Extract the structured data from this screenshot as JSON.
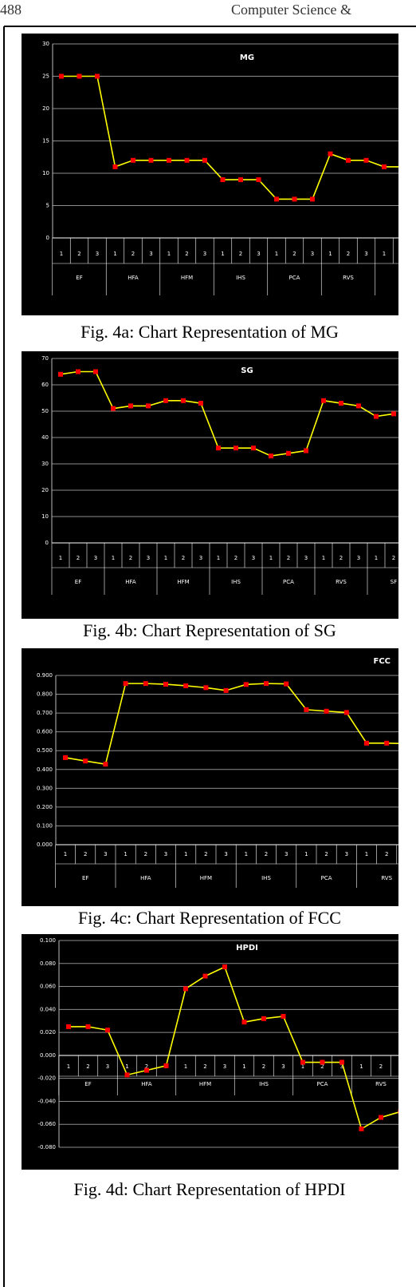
{
  "header": {
    "page": "488",
    "running_title": "Computer Science &"
  },
  "chart_data": [
    {
      "type": "line",
      "title": "MG",
      "caption": "Fig. 4a: Chart Representation of MG",
      "categories": [
        "1",
        "2",
        "3",
        "1",
        "2",
        "3",
        "1",
        "2",
        "3",
        "1",
        "2",
        "3",
        "1",
        "2",
        "3",
        "1",
        "2",
        "3",
        "1",
        null
      ],
      "groups": [
        "EF",
        "HFA",
        "HFM",
        "IHS",
        "PCA",
        "RVS",
        null
      ],
      "values": [
        25,
        25,
        25,
        11,
        12,
        12,
        12,
        12,
        12,
        9,
        9,
        9,
        6,
        6,
        6,
        13,
        12,
        12,
        11,
        11
      ],
      "color": "#ffff00",
      "marker_color": "#ff0000",
      "ylim": [
        0,
        30
      ],
      "yticks": [
        0,
        5,
        10,
        15,
        20,
        25,
        30
      ],
      "grid": true
    },
    {
      "type": "line",
      "title": "SG",
      "caption": "Fig. 4b: Chart Representation of SG",
      "categories": [
        "1",
        "2",
        "3",
        "1",
        "2",
        "3",
        "1",
        "2",
        "3",
        "1",
        "2",
        "3",
        "1",
        "2",
        "3",
        "1",
        "2",
        "3",
        "1",
        "2"
      ],
      "groups": [
        "EF",
        "HFA",
        "HFM",
        "IHS",
        "PCA",
        "RVS",
        "SF"
      ],
      "values": [
        64,
        65,
        65,
        51,
        52,
        52,
        54,
        54,
        53,
        36,
        36,
        36,
        33,
        34,
        35,
        54,
        53,
        52,
        48,
        49
      ],
      "color": "#ffff00",
      "marker_color": "#ff0000",
      "ylim": [
        0,
        70
      ],
      "yticks": [
        0,
        10,
        20,
        30,
        40,
        50,
        60,
        70
      ],
      "grid": true
    },
    {
      "type": "line",
      "title": "FCC",
      "caption": "Fig. 4c: Chart Representation of FCC",
      "categories": [
        "1",
        "2",
        "3",
        "1",
        "2",
        "3",
        "1",
        "2",
        "3",
        "1",
        "2",
        "3",
        "1",
        "2",
        "3",
        "1",
        "2",
        null
      ],
      "groups": [
        "EF",
        "HFA",
        "HFM",
        "IHS",
        "PCA",
        "RVS"
      ],
      "values": [
        0.463,
        0.445,
        0.428,
        0.857,
        0.857,
        0.853,
        0.845,
        0.835,
        0.82,
        0.852,
        0.857,
        0.855,
        0.718,
        0.71,
        0.703,
        0.54,
        0.54,
        0.537
      ],
      "color": "#ffff00",
      "marker_color": "#ff0000",
      "ylim": [
        0,
        0.9
      ],
      "yticks": [
        {
          "value": 0,
          "label": "0.000"
        },
        {
          "value": 0.1,
          "label": "0.100"
        },
        {
          "value": 0.2,
          "label": "0.200"
        },
        {
          "value": 0.3,
          "label": "0.300"
        },
        {
          "value": 0.4,
          "label": "0.400"
        },
        {
          "value": 0.5,
          "label": "0.500"
        },
        {
          "value": 0.6,
          "label": "0.600"
        },
        {
          "value": 0.7,
          "label": "0.700"
        },
        {
          "value": 0.8,
          "label": "0.800"
        },
        {
          "value": 0.9,
          "label": "0.900"
        }
      ],
      "grid": true
    },
    {
      "type": "line",
      "title": "HPDI",
      "caption": "Fig. 4d: Chart Representation of HPDI",
      "categories": [
        "1",
        "2",
        "3",
        "1",
        "2",
        "3",
        "1",
        "2",
        "3",
        "1",
        "2",
        "3",
        "1",
        "2",
        "3",
        "1",
        "2",
        null
      ],
      "groups": [
        "EF",
        "HFA",
        "HFM",
        "IHS",
        "PCA",
        "RVS"
      ],
      "values": [
        0.025,
        0.025,
        0.022,
        -0.017,
        -0.013,
        -0.009,
        0.058,
        0.069,
        0.077,
        0.029,
        0.032,
        0.034,
        -0.006,
        -0.006,
        -0.006,
        -0.064,
        -0.054,
        -0.049
      ],
      "color": "#ffff00",
      "marker_color": "#ff0000",
      "ylim": [
        -0.08,
        0.1
      ],
      "yticks": [
        {
          "value": -0.08,
          "label": "-0.080"
        },
        {
          "value": -0.06,
          "label": "-0.060"
        },
        {
          "value": -0.04,
          "label": "-0.040"
        },
        {
          "value": -0.02,
          "label": "-0.020"
        },
        {
          "value": 0,
          "label": "0.000"
        },
        {
          "value": 0.02,
          "label": "0.020"
        },
        {
          "value": 0.04,
          "label": "0.040"
        },
        {
          "value": 0.06,
          "label": "0.060"
        },
        {
          "value": 0.08,
          "label": "0.080"
        },
        {
          "value": 0.1,
          "label": "0.100"
        }
      ],
      "grid": true
    }
  ]
}
